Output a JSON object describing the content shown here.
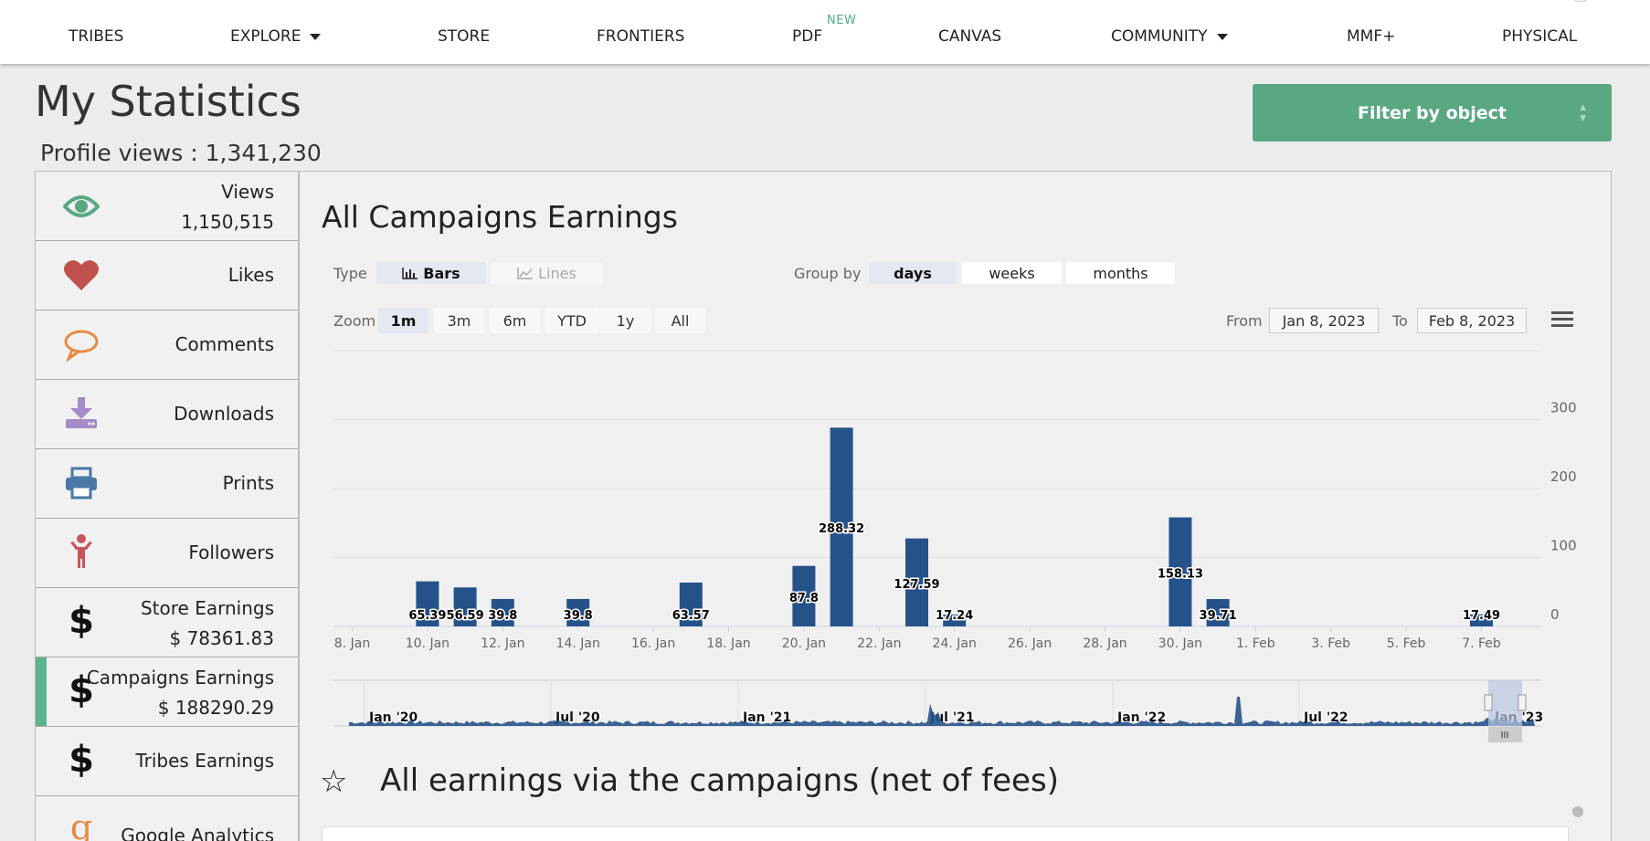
{
  "nav": {
    "items": [
      {
        "label": "TRIBES",
        "caret": false
      },
      {
        "label": "EXPLORE",
        "caret": true
      },
      {
        "label": "STORE",
        "caret": false
      },
      {
        "label": "FRONTIERS",
        "caret": false
      },
      {
        "label": "PDF",
        "caret": false
      },
      {
        "label": "CANVAS",
        "caret": false
      },
      {
        "label": "COMMUNITY",
        "caret": true
      },
      {
        "label": "MMF+",
        "caret": false
      },
      {
        "label": "PHYSICAL",
        "caret": false
      }
    ],
    "new_badge": "NEW"
  },
  "header": {
    "title": "My Statistics",
    "profile_views": "Profile views : 1,341,230",
    "filter_button": "Filter by object"
  },
  "sidebar": {
    "items": [
      {
        "icon": "eye-icon",
        "label": "Views",
        "value": "1,150,515"
      },
      {
        "icon": "heart-icon",
        "label": "Likes",
        "value": ""
      },
      {
        "icon": "comment-icon",
        "label": "Comments",
        "value": ""
      },
      {
        "icon": "download-icon",
        "label": "Downloads",
        "value": ""
      },
      {
        "icon": "printer-icon",
        "label": "Prints",
        "value": ""
      },
      {
        "icon": "person-icon",
        "label": "Followers",
        "value": ""
      },
      {
        "icon": "dollar-icon",
        "label": "Store Earnings",
        "value": "$ 78361.83"
      },
      {
        "icon": "dollar-icon",
        "label": "Campaigns Earnings",
        "value": "$ 188290.29",
        "active": true
      },
      {
        "icon": "dollar-icon",
        "label": "Tribes Earnings",
        "value": ""
      },
      {
        "icon": "google-icon",
        "label": "Google Analytics",
        "value": ""
      }
    ],
    "colors": {
      "eye": "#5aa882",
      "heart": "#c0504d",
      "comment": "#e58a43",
      "download": "#a68bc9",
      "printer": "#4a78a8",
      "person": "#c7545b",
      "google": "#e58a43",
      "active": "#5cb48e"
    }
  },
  "chart_panel": {
    "title": "All Campaigns Earnings",
    "type_label": "Type",
    "type_options": [
      {
        "label": "Bars",
        "selected": true
      },
      {
        "label": "Lines",
        "selected": false
      }
    ],
    "group_label": "Group by",
    "group_options": [
      {
        "label": "days",
        "selected": true
      },
      {
        "label": "weeks",
        "selected": false
      },
      {
        "label": "months",
        "selected": false
      }
    ],
    "zoom_label": "Zoom",
    "zoom_options": [
      {
        "label": "1m",
        "selected": true
      },
      {
        "label": "3m"
      },
      {
        "label": "6m"
      },
      {
        "label": "YTD"
      },
      {
        "label": "1y"
      },
      {
        "label": "All"
      }
    ],
    "from_label": "From",
    "from_value": "Jan 8, 2023",
    "to_label": "To",
    "to_value": "Feb 8, 2023"
  },
  "chart_data": {
    "type": "bar",
    "color": "#26528a",
    "x_ticks": [
      "8. Jan",
      "10. Jan",
      "12. Jan",
      "14. Jan",
      "16. Jan",
      "18. Jan",
      "20. Jan",
      "22. Jan",
      "24. Jan",
      "26. Jan",
      "28. Jan",
      "30. Jan",
      "1. Feb",
      "3. Feb",
      "5. Feb",
      "7. Feb"
    ],
    "y_ticks": [
      0,
      100,
      200,
      300
    ],
    "ylim": [
      0,
      400
    ],
    "bars": [
      {
        "day": 10,
        "value": 65.39
      },
      {
        "day": 11,
        "value": 56.59
      },
      {
        "day": 12,
        "value": 39.8
      },
      {
        "day": 14,
        "value": 39.8
      },
      {
        "day": 17,
        "value": 63.57
      },
      {
        "day": 20,
        "value": 87.8
      },
      {
        "day": 21,
        "value": 288.32
      },
      {
        "day": 23,
        "value": 127.59
      },
      {
        "day": 24,
        "value": 17.24
      },
      {
        "day": 30,
        "value": 158.13
      },
      {
        "day": 31,
        "value": 39.71
      },
      {
        "day": 38,
        "value": 17.49
      }
    ],
    "navigator_labels": [
      "Jan '20",
      "Jul '20",
      "Jan '21",
      "Jul '21",
      "Jan '22",
      "Jul '22",
      "Jan '23"
    ]
  },
  "section2": {
    "title": "All earnings via the campaigns (net of fees)"
  }
}
